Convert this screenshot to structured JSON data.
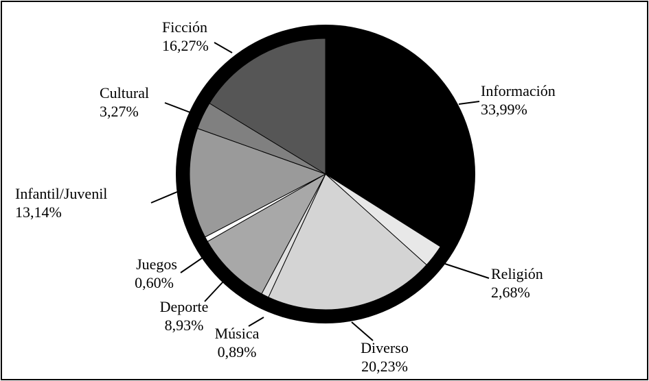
{
  "chart_data": {
    "type": "pie",
    "categories": [
      "Información",
      "Religión",
      "Diverso",
      "Música",
      "Deporte",
      "Juegos",
      "Infantil/Juvenil",
      "Cultural",
      "Ficción"
    ],
    "values": [
      33.99,
      2.68,
      20.23,
      0.89,
      8.93,
      0.6,
      13.14,
      3.27,
      16.27
    ],
    "value_labels": [
      "33,99%",
      "2,68%",
      "20,23%",
      "0,89%",
      "8,93%",
      "0,60%",
      "13,14%",
      "3,27%",
      "16,27%"
    ],
    "colors": [
      "#000000",
      "#e8e8e8",
      "#d4d4d4",
      "#e0e0e0",
      "#a8a8a8",
      "#ffffff",
      "#9a9a9a",
      "#808080",
      "#565656"
    ]
  }
}
